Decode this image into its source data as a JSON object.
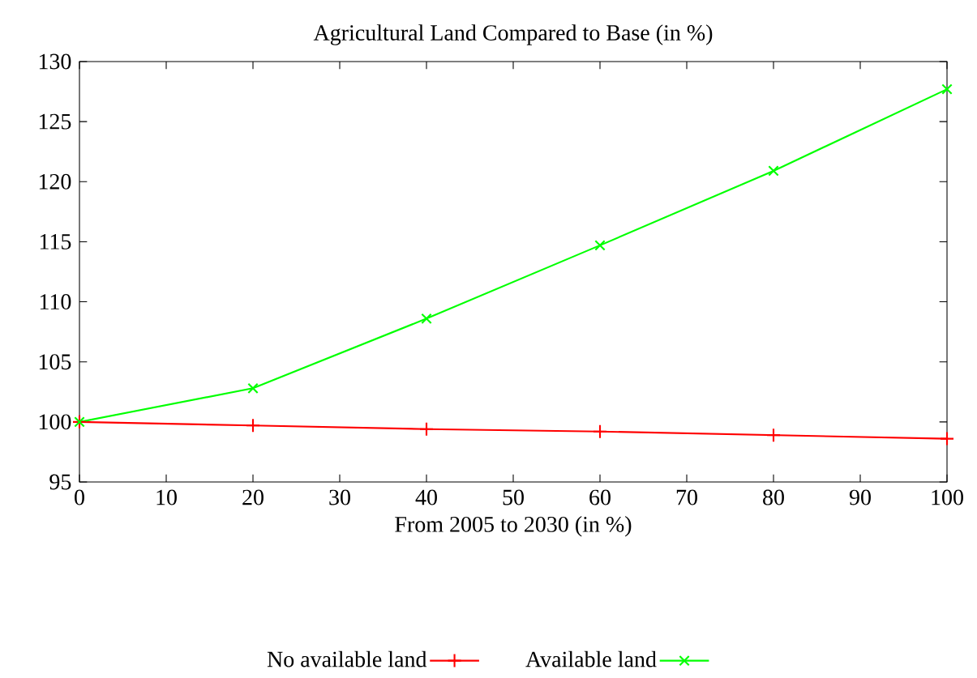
{
  "chart_data": {
    "type": "line",
    "title": "Agricultural Land Compared to Base (in %)",
    "xlabel": "From 2005 to 2030 (in %)",
    "x": [
      0,
      20,
      40,
      60,
      80,
      100
    ],
    "series": [
      {
        "name": "No available land",
        "color": "#ff0000",
        "marker": "plus",
        "values": [
          100,
          99.7,
          99.4,
          99.2,
          98.9,
          98.6
        ]
      },
      {
        "name": "Available land",
        "color": "#00ff00",
        "marker": "cross",
        "values": [
          100,
          102.8,
          108.6,
          114.7,
          120.9,
          127.7
        ]
      }
    ],
    "xlim": [
      0,
      100
    ],
    "xticks": [
      0,
      10,
      20,
      30,
      40,
      50,
      60,
      70,
      80,
      90,
      100
    ],
    "ylim": [
      95,
      130
    ],
    "yticks": [
      95,
      100,
      105,
      110,
      115,
      120,
      125,
      130
    ],
    "grid": false,
    "legend": "bottom",
    "line_style": "solid"
  }
}
